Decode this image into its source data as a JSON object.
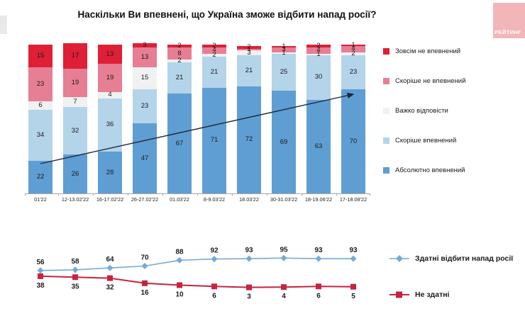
{
  "title": "Наскільки Ви впевнені, що Україна зможе відбити напад росії?",
  "watermark": "РЕЙТИНГ",
  "colors": {
    "not_confident_at_all": "#de1f36",
    "rather_not_confident": "#e67e94",
    "hard_to_say": "#f1f1f2",
    "rather_confident": "#b4d4ea",
    "absolutely_confident": "#5f9ed3",
    "line_able": "#74aad6",
    "line_not_able": "#c7233f",
    "trend_arrow": "#1e2a3a",
    "axis": "#a6a6a6"
  },
  "chart_data": [
    {
      "type": "bar",
      "stacked": true,
      "title": "Наскільки Ви впевнені, що Україна зможе відбити напад росії?",
      "categories": [
        "01'22",
        "12-13.02'22",
        "16-17.02'22",
        "26-27.02'22",
        "01.03'22",
        "8-9.03'22",
        "18.03'22",
        "30-31.03'22",
        "18-19.06'22",
        "17-18.08'22"
      ],
      "series": [
        {
          "name": "Зовсім не впевнений",
          "color": "#de1f36",
          "values": [
            15,
            17,
            13,
            3,
            2,
            2,
            2,
            1,
            2,
            1
          ]
        },
        {
          "name": "Скоріше не впевнений",
          "color": "#e67e94",
          "values": [
            23,
            19,
            19,
            13,
            8,
            4,
            1,
            3,
            4,
            4
          ]
        },
        {
          "name": "Важко відповісти",
          "color": "#f1f1f2",
          "values": [
            6,
            7,
            4,
            15,
            2,
            2,
            3,
            1,
            1,
            2
          ]
        },
        {
          "name": "Скоріше впевнений",
          "color": "#b4d4ea",
          "values": [
            34,
            32,
            36,
            23,
            21,
            21,
            21,
            25,
            30,
            23
          ]
        },
        {
          "name": "Абсолютно впевнений",
          "color": "#5f9ed3",
          "values": [
            22,
            26,
            28,
            47,
            67,
            71,
            72,
            69,
            63,
            70
          ]
        }
      ],
      "ylim": [
        0,
        100
      ],
      "grid": false,
      "legend_position": "right",
      "annotation": "upward trend arrow across bars"
    },
    {
      "type": "line",
      "categories": [
        "01'22",
        "12-13.02'22",
        "16-17.02'22",
        "26-27.02'22",
        "01.03'22",
        "8-9.03'22",
        "18.03'22",
        "30-31.03'22",
        "18-19.06'22",
        "17-18.08'22"
      ],
      "series": [
        {
          "name": "Здатні відбити напад росії",
          "color": "#74aad6",
          "marker": "diamond",
          "values": [
            56,
            58,
            64,
            70,
            88,
            92,
            93,
            95,
            93,
            93
          ]
        },
        {
          "name": "Не здатні",
          "color": "#c7233f",
          "marker": "square",
          "values": [
            38,
            35,
            32,
            16,
            10,
            6,
            3,
            4,
            6,
            5
          ]
        }
      ],
      "ylim": [
        0,
        100
      ],
      "grid": false,
      "legend_position": "right"
    }
  ]
}
